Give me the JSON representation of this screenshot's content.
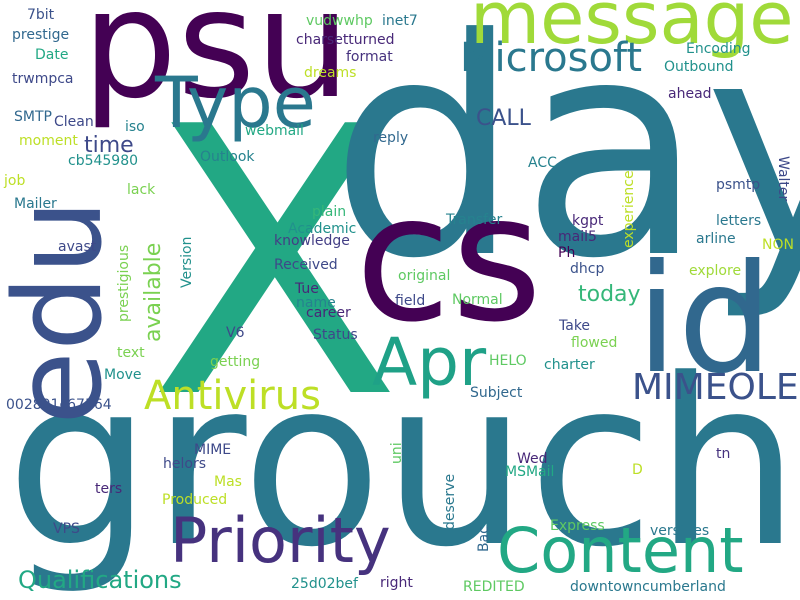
{
  "words": [
    {
      "text": "X",
      "color": "#22a884"
    },
    {
      "text": "day",
      "color": "#2a788e"
    },
    {
      "text": "groucho",
      "color": "#2a788e"
    },
    {
      "text": "cs",
      "color": "#440154"
    },
    {
      "text": "psu",
      "color": "#440154"
    },
    {
      "text": "edu",
      "color": "#3b528b"
    },
    {
      "text": "id",
      "color": "#31688e"
    },
    {
      "text": "message",
      "color": "#a0da39"
    },
    {
      "text": "Type",
      "color": "#2a788e"
    },
    {
      "text": "Priority",
      "color": "#46327e"
    },
    {
      "text": "Content",
      "color": "#22a884"
    },
    {
      "text": "Apr",
      "color": "#1fa187"
    },
    {
      "text": "Microsoft",
      "color": "#2a788e"
    },
    {
      "text": "Antivirus",
      "color": "#bddf26"
    },
    {
      "text": "MIMEOLE",
      "color": "#3b528b"
    },
    {
      "text": "Qualifications",
      "color": "#22a884"
    },
    {
      "text": "available",
      "color": "#7ad151"
    },
    {
      "text": "today",
      "color": "#35b779"
    },
    {
      "text": "CALL",
      "color": "#3b528b"
    },
    {
      "text": "time",
      "color": "#3e4989"
    },
    {
      "text": "7bit",
      "color": "#3b528b"
    },
    {
      "text": "prestige",
      "color": "#31688e"
    },
    {
      "text": "Date",
      "color": "#22a884"
    },
    {
      "text": "trwmpca",
      "color": "#3e4989"
    },
    {
      "text": "SMTP",
      "color": "#31688e"
    },
    {
      "text": "Clean",
      "color": "#3e4989"
    },
    {
      "text": "moment",
      "color": "#bddf26"
    },
    {
      "text": "job",
      "color": "#bddf26"
    },
    {
      "text": "Mailer",
      "color": "#2a788e"
    },
    {
      "text": "avast",
      "color": "#3e4989"
    },
    {
      "text": "iso",
      "color": "#26828e"
    },
    {
      "text": "cb545980",
      "color": "#21918c"
    },
    {
      "text": "lack",
      "color": "#7ad151"
    },
    {
      "text": "vudwwhp",
      "color": "#5ec962"
    },
    {
      "text": "inet7",
      "color": "#2a788e"
    },
    {
      "text": "charsetturned",
      "color": "#482878"
    },
    {
      "text": "format",
      "color": "#46327e"
    },
    {
      "text": "dreams",
      "color": "#bddf26"
    },
    {
      "text": "Encoding",
      "color": "#21918c"
    },
    {
      "text": "Outbound",
      "color": "#21918c"
    },
    {
      "text": "ahead",
      "color": "#482878"
    },
    {
      "text": "webmail",
      "color": "#22a884"
    },
    {
      "text": "reply",
      "color": "#31688e"
    },
    {
      "text": "Outlook",
      "color": "#26828e"
    },
    {
      "text": "ACC",
      "color": "#26828e"
    },
    {
      "text": "experience",
      "color": "#bddf26"
    },
    {
      "text": "psmtp",
      "color": "#3b528b"
    },
    {
      "text": "Walter",
      "color": "#3e4989"
    },
    {
      "text": "letters",
      "color": "#2a788e"
    },
    {
      "text": "arline",
      "color": "#2a788e"
    },
    {
      "text": "NON",
      "color": "#bddf26"
    },
    {
      "text": "explore",
      "color": "#a0da39"
    },
    {
      "text": "Transfer",
      "color": "#26828e"
    },
    {
      "text": "kgpt",
      "color": "#482878"
    },
    {
      "text": "mail5",
      "color": "#482878"
    },
    {
      "text": "plain",
      "color": "#35b779"
    },
    {
      "text": "Academic",
      "color": "#21918c"
    },
    {
      "text": "knowledge",
      "color": "#433e85"
    },
    {
      "text": "Received",
      "color": "#3e4989"
    },
    {
      "text": "Ph",
      "color": "#440154"
    },
    {
      "text": "dhcp",
      "color": "#3b528b"
    },
    {
      "text": "original",
      "color": "#5ec962"
    },
    {
      "text": "field",
      "color": "#3e4989"
    },
    {
      "text": "Normal",
      "color": "#5ec962"
    },
    {
      "text": "Tue",
      "color": "#482878"
    },
    {
      "text": "name",
      "color": "#26828e"
    },
    {
      "text": "career",
      "color": "#482878"
    },
    {
      "text": "Status",
      "color": "#3e4989"
    },
    {
      "text": "Take",
      "color": "#3e4989"
    },
    {
      "text": "flowed",
      "color": "#7ad151"
    },
    {
      "text": "charter",
      "color": "#21918c"
    },
    {
      "text": "HELO",
      "color": "#5ec962"
    },
    {
      "text": "Subject",
      "color": "#31688e"
    },
    {
      "text": "Version",
      "color": "#21918c"
    },
    {
      "text": "prestigious",
      "color": "#7ad151"
    },
    {
      "text": "V6",
      "color": "#3e4989"
    },
    {
      "text": "getting",
      "color": "#7ad151"
    },
    {
      "text": "text",
      "color": "#7ad151"
    },
    {
      "text": "Move",
      "color": "#21918c"
    },
    {
      "text": "002801c67564",
      "color": "#3b528b"
    },
    {
      "text": "MIME",
      "color": "#3e4989"
    },
    {
      "text": "helors",
      "color": "#3e4989"
    },
    {
      "text": "Mas",
      "color": "#bddf26"
    },
    {
      "text": "Produced",
      "color": "#bddf26"
    },
    {
      "text": "ters",
      "color": "#482878"
    },
    {
      "text": "VPS",
      "color": "#3e4989"
    },
    {
      "text": "uni",
      "color": "#5ec962"
    },
    {
      "text": "Wed",
      "color": "#482878"
    },
    {
      "text": "MSMail",
      "color": "#22a884"
    },
    {
      "text": "deserve",
      "color": "#2a788e"
    },
    {
      "text": "D",
      "color": "#bddf26"
    },
    {
      "text": "tn",
      "color": "#46327e"
    },
    {
      "text": "Bac",
      "color": "#31688e"
    },
    {
      "text": "Express",
      "color": "#5ec962"
    },
    {
      "text": "versities",
      "color": "#2a788e"
    },
    {
      "text": "25d02bef",
      "color": "#21918c"
    },
    {
      "text": "right",
      "color": "#482878"
    },
    {
      "text": "REDITED",
      "color": "#5ec962"
    },
    {
      "text": "downtowncumberland",
      "color": "#2a788e"
    }
  ]
}
